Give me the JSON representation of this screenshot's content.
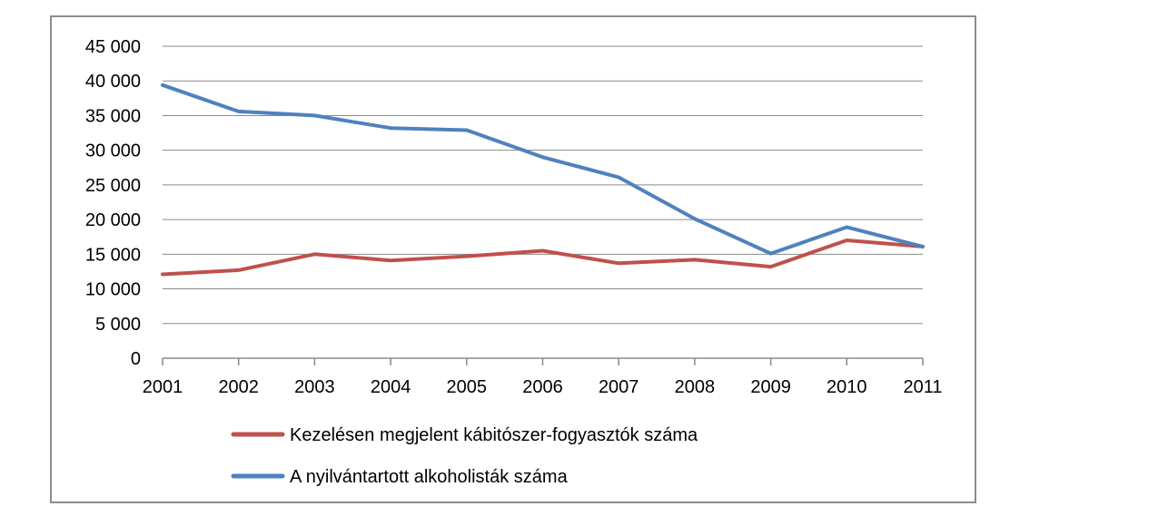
{
  "chart_data": {
    "type": "line",
    "title": "",
    "xlabel": "",
    "ylabel": "",
    "x": [
      "2001",
      "2002",
      "2003",
      "2004",
      "2005",
      "2006",
      "2007",
      "2008",
      "2009",
      "2010",
      "2011"
    ],
    "ylim": [
      0,
      45000
    ],
    "yticks": [
      0,
      5000,
      10000,
      15000,
      20000,
      25000,
      30000,
      35000,
      40000,
      45000
    ],
    "ytick_labels": [
      "0",
      "5 000",
      "10 000",
      "15 000",
      "20 000",
      "25 000",
      "30 000",
      "35 000",
      "40 000",
      "45 000"
    ],
    "grid": "horizontal",
    "legend_position": "bottom",
    "series": [
      {
        "name": "Kezelésen megjelent kábitószer-fogyasztók száma",
        "color": "#c0504d",
        "values": [
          12100,
          12700,
          15000,
          14100,
          14700,
          15500,
          13700,
          14200,
          13200,
          17000,
          16100
        ]
      },
      {
        "name": "A nyilvántartott alkoholisták száma",
        "color": "#4f81bd",
        "values": [
          39400,
          35600,
          35000,
          33200,
          32900,
          29000,
          26100,
          20100,
          15100,
          18900,
          16100
        ]
      }
    ]
  }
}
